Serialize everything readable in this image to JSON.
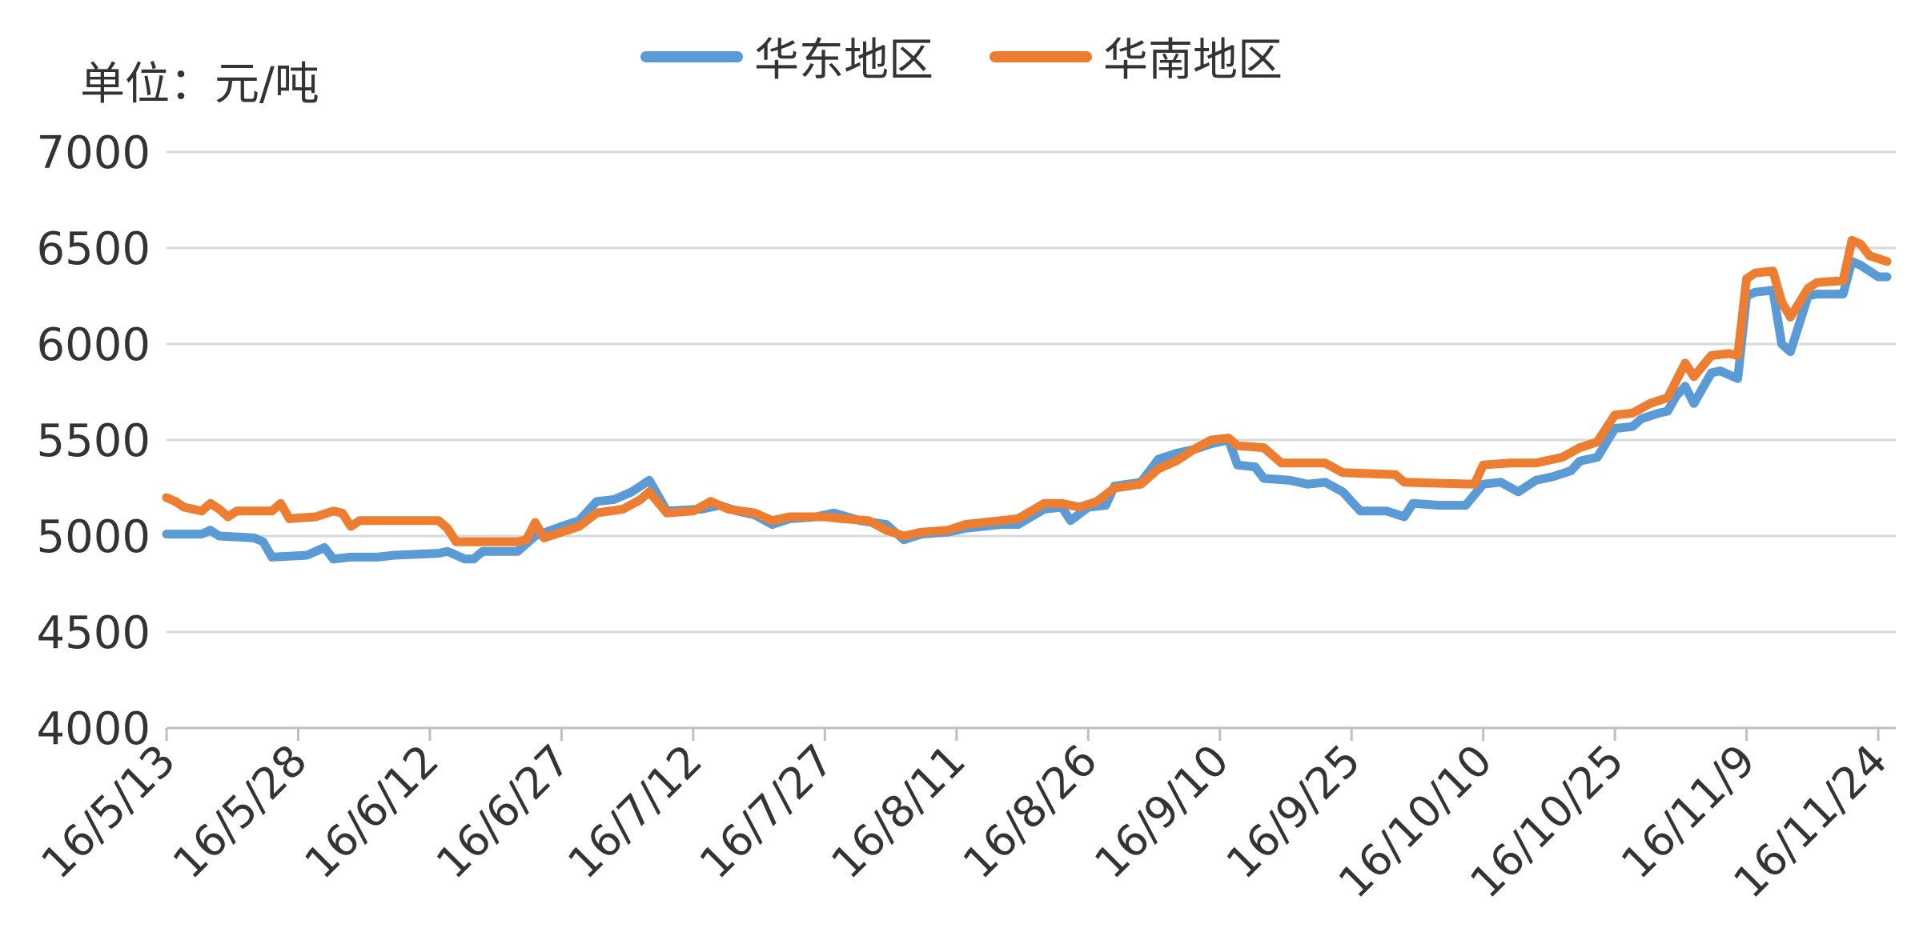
{
  "unit_label": "单位：元/吨",
  "chart_data": {
    "type": "line",
    "ylim": [
      4000,
      7000
    ],
    "yticks": [
      4000,
      4500,
      5000,
      5500,
      6000,
      6500,
      7000
    ],
    "xlim": [
      "2016-05-13",
      "2016-11-26"
    ],
    "xticks": [
      {
        "date": "2016-05-13",
        "label": "16/5/13"
      },
      {
        "date": "2016-05-28",
        "label": "16/5/28"
      },
      {
        "date": "2016-06-12",
        "label": "16/6/12"
      },
      {
        "date": "2016-06-27",
        "label": "16/6/27"
      },
      {
        "date": "2016-07-12",
        "label": "16/7/12"
      },
      {
        "date": "2016-07-27",
        "label": "16/7/27"
      },
      {
        "date": "2016-08-11",
        "label": "16/8/11"
      },
      {
        "date": "2016-08-26",
        "label": "16/8/26"
      },
      {
        "date": "2016-09-10",
        "label": "16/9/10"
      },
      {
        "date": "2016-09-25",
        "label": "16/9/25"
      },
      {
        "date": "2016-10-10",
        "label": "16/10/10"
      },
      {
        "date": "2016-10-25",
        "label": "16/10/25"
      },
      {
        "date": "2016-11-09",
        "label": "16/11/9"
      },
      {
        "date": "2016-11-24",
        "label": "16/11/24"
      }
    ],
    "grid": true,
    "legend_position": "top-center",
    "series": [
      {
        "name": "华东地区",
        "color": "#5B9BD5",
        "points": [
          [
            "2016-05-13",
            5010
          ],
          [
            "2016-05-17",
            5010
          ],
          [
            "2016-05-18",
            5030
          ],
          [
            "2016-05-19",
            5000
          ],
          [
            "2016-05-23",
            4990
          ],
          [
            "2016-05-24",
            4970
          ],
          [
            "2016-05-25",
            4890
          ],
          [
            "2016-05-29",
            4900
          ],
          [
            "2016-05-30",
            4920
          ],
          [
            "2016-05-31",
            4940
          ],
          [
            "2016-06-01",
            4880
          ],
          [
            "2016-06-03",
            4890
          ],
          [
            "2016-06-06",
            4890
          ],
          [
            "2016-06-08",
            4900
          ],
          [
            "2016-06-13",
            4910
          ],
          [
            "2016-06-14",
            4920
          ],
          [
            "2016-06-16",
            4880
          ],
          [
            "2016-06-17",
            4880
          ],
          [
            "2016-06-18",
            4920
          ],
          [
            "2016-06-22",
            4920
          ],
          [
            "2016-06-23",
            4960
          ],
          [
            "2016-06-24",
            5000
          ],
          [
            "2016-06-27",
            5050
          ],
          [
            "2016-06-29",
            5080
          ],
          [
            "2016-07-01",
            5180
          ],
          [
            "2016-07-03",
            5190
          ],
          [
            "2016-07-05",
            5230
          ],
          [
            "2016-07-07",
            5290
          ],
          [
            "2016-07-09",
            5130
          ],
          [
            "2016-07-13",
            5140
          ],
          [
            "2016-07-15",
            5160
          ],
          [
            "2016-07-17",
            5130
          ],
          [
            "2016-07-19",
            5110
          ],
          [
            "2016-07-21",
            5060
          ],
          [
            "2016-07-23",
            5090
          ],
          [
            "2016-07-26",
            5100
          ],
          [
            "2016-07-28",
            5120
          ],
          [
            "2016-07-31",
            5080
          ],
          [
            "2016-08-03",
            5060
          ],
          [
            "2016-08-05",
            4980
          ],
          [
            "2016-08-07",
            5010
          ],
          [
            "2016-08-10",
            5020
          ],
          [
            "2016-08-12",
            5040
          ],
          [
            "2016-08-14",
            5050
          ],
          [
            "2016-08-16",
            5060
          ],
          [
            "2016-08-18",
            5060
          ],
          [
            "2016-08-21",
            5140
          ],
          [
            "2016-08-23",
            5150
          ],
          [
            "2016-08-24",
            5080
          ],
          [
            "2016-08-26",
            5150
          ],
          [
            "2016-08-28",
            5160
          ],
          [
            "2016-08-29",
            5260
          ],
          [
            "2016-09-01",
            5280
          ],
          [
            "2016-09-03",
            5400
          ],
          [
            "2016-09-05",
            5430
          ],
          [
            "2016-09-07",
            5450
          ],
          [
            "2016-09-09",
            5480
          ],
          [
            "2016-09-11",
            5500
          ],
          [
            "2016-09-12",
            5370
          ],
          [
            "2016-09-14",
            5360
          ],
          [
            "2016-09-15",
            5300
          ],
          [
            "2016-09-18",
            5290
          ],
          [
            "2016-09-20",
            5270
          ],
          [
            "2016-09-22",
            5280
          ],
          [
            "2016-09-24",
            5230
          ],
          [
            "2016-09-26",
            5130
          ],
          [
            "2016-09-29",
            5130
          ],
          [
            "2016-10-01",
            5100
          ],
          [
            "2016-10-02",
            5170
          ],
          [
            "2016-10-05",
            5160
          ],
          [
            "2016-10-08",
            5160
          ],
          [
            "2016-10-10",
            5270
          ],
          [
            "2016-10-12",
            5280
          ],
          [
            "2016-10-14",
            5230
          ],
          [
            "2016-10-16",
            5290
          ],
          [
            "2016-10-18",
            5310
          ],
          [
            "2016-10-20",
            5340
          ],
          [
            "2016-10-21",
            5390
          ],
          [
            "2016-10-23",
            5410
          ],
          [
            "2016-10-25",
            5560
          ],
          [
            "2016-10-27",
            5570
          ],
          [
            "2016-10-28",
            5610
          ],
          [
            "2016-10-30",
            5640
          ],
          [
            "2016-10-31",
            5650
          ],
          [
            "2016-11-01",
            5730
          ],
          [
            "2016-11-02",
            5780
          ],
          [
            "2016-11-03",
            5690
          ],
          [
            "2016-11-05",
            5850
          ],
          [
            "2016-11-06",
            5860
          ],
          [
            "2016-11-07",
            5840
          ],
          [
            "2016-11-08",
            5820
          ],
          [
            "2016-11-09",
            6250
          ],
          [
            "2016-11-10",
            6270
          ],
          [
            "2016-11-12",
            6280
          ],
          [
            "2016-11-13",
            6000
          ],
          [
            "2016-11-14",
            5960
          ],
          [
            "2016-11-16",
            6250
          ],
          [
            "2016-11-17",
            6260
          ],
          [
            "2016-11-20",
            6260
          ],
          [
            "2016-11-21",
            6430
          ],
          [
            "2016-11-22",
            6410
          ],
          [
            "2016-11-24",
            6350
          ],
          [
            "2016-11-25",
            6350
          ]
        ]
      },
      {
        "name": "华南地区",
        "color": "#ED7D31",
        "points": [
          [
            "2016-05-13",
            5200
          ],
          [
            "2016-05-14",
            5180
          ],
          [
            "2016-05-15",
            5150
          ],
          [
            "2016-05-17",
            5130
          ],
          [
            "2016-05-18",
            5170
          ],
          [
            "2016-05-19",
            5140
          ],
          [
            "2016-05-20",
            5100
          ],
          [
            "2016-05-21",
            5130
          ],
          [
            "2016-05-25",
            5130
          ],
          [
            "2016-05-26",
            5170
          ],
          [
            "2016-05-27",
            5090
          ],
          [
            "2016-05-30",
            5100
          ],
          [
            "2016-06-01",
            5130
          ],
          [
            "2016-06-02",
            5120
          ],
          [
            "2016-06-03",
            5050
          ],
          [
            "2016-06-04",
            5080
          ],
          [
            "2016-06-13",
            5080
          ],
          [
            "2016-06-14",
            5040
          ],
          [
            "2016-06-15",
            4970
          ],
          [
            "2016-06-22",
            4970
          ],
          [
            "2016-06-23",
            4980
          ],
          [
            "2016-06-24",
            5070
          ],
          [
            "2016-06-25",
            4990
          ],
          [
            "2016-06-27",
            5020
          ],
          [
            "2016-06-29",
            5050
          ],
          [
            "2016-07-01",
            5120
          ],
          [
            "2016-07-04",
            5140
          ],
          [
            "2016-07-06",
            5190
          ],
          [
            "2016-07-07",
            5230
          ],
          [
            "2016-07-09",
            5120
          ],
          [
            "2016-07-12",
            5130
          ],
          [
            "2016-07-14",
            5180
          ],
          [
            "2016-07-16",
            5140
          ],
          [
            "2016-07-19",
            5120
          ],
          [
            "2016-07-21",
            5080
          ],
          [
            "2016-07-23",
            5100
          ],
          [
            "2016-07-27",
            5100
          ],
          [
            "2016-07-29",
            5090
          ],
          [
            "2016-08-01",
            5080
          ],
          [
            "2016-08-03",
            5030
          ],
          [
            "2016-08-05",
            5000
          ],
          [
            "2016-08-07",
            5020
          ],
          [
            "2016-08-10",
            5030
          ],
          [
            "2016-08-12",
            5060
          ],
          [
            "2016-08-14",
            5070
          ],
          [
            "2016-08-16",
            5080
          ],
          [
            "2016-08-18",
            5090
          ],
          [
            "2016-08-21",
            5170
          ],
          [
            "2016-08-23",
            5170
          ],
          [
            "2016-08-25",
            5150
          ],
          [
            "2016-08-27",
            5180
          ],
          [
            "2016-08-29",
            5250
          ],
          [
            "2016-09-01",
            5270
          ],
          [
            "2016-09-03",
            5350
          ],
          [
            "2016-09-05",
            5390
          ],
          [
            "2016-09-07",
            5450
          ],
          [
            "2016-09-09",
            5500
          ],
          [
            "2016-09-11",
            5510
          ],
          [
            "2016-09-12",
            5470
          ],
          [
            "2016-09-15",
            5460
          ],
          [
            "2016-09-17",
            5380
          ],
          [
            "2016-09-22",
            5380
          ],
          [
            "2016-09-24",
            5330
          ],
          [
            "2016-09-30",
            5320
          ],
          [
            "2016-10-01",
            5280
          ],
          [
            "2016-10-09",
            5270
          ],
          [
            "2016-10-10",
            5370
          ],
          [
            "2016-10-13",
            5380
          ],
          [
            "2016-10-16",
            5380
          ],
          [
            "2016-10-19",
            5410
          ],
          [
            "2016-10-21",
            5460
          ],
          [
            "2016-10-23",
            5490
          ],
          [
            "2016-10-25",
            5630
          ],
          [
            "2016-10-27",
            5640
          ],
          [
            "2016-10-29",
            5690
          ],
          [
            "2016-10-31",
            5720
          ],
          [
            "2016-11-02",
            5900
          ],
          [
            "2016-11-03",
            5830
          ],
          [
            "2016-11-05",
            5940
          ],
          [
            "2016-11-07",
            5950
          ],
          [
            "2016-11-08",
            5940
          ],
          [
            "2016-11-09",
            6340
          ],
          [
            "2016-11-10",
            6370
          ],
          [
            "2016-11-12",
            6380
          ],
          [
            "2016-11-13",
            6220
          ],
          [
            "2016-11-14",
            6140
          ],
          [
            "2016-11-16",
            6290
          ],
          [
            "2016-11-17",
            6320
          ],
          [
            "2016-11-20",
            6330
          ],
          [
            "2016-11-21",
            6540
          ],
          [
            "2016-11-22",
            6520
          ],
          [
            "2016-11-23",
            6460
          ],
          [
            "2016-11-25",
            6430
          ]
        ]
      }
    ]
  }
}
